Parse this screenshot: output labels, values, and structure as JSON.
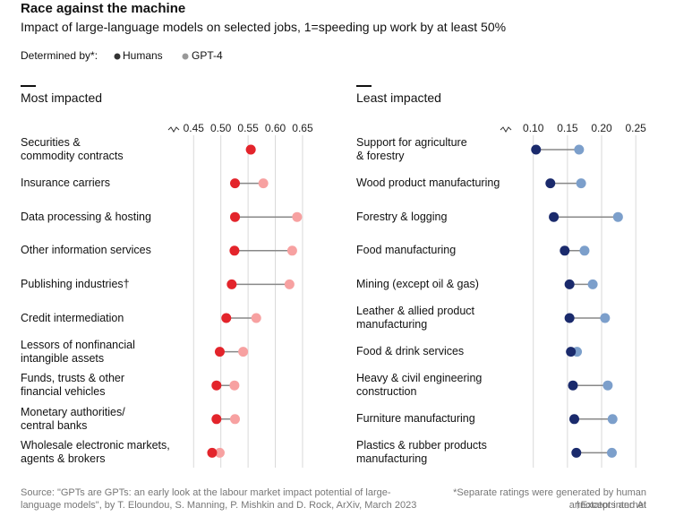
{
  "header": {
    "title": "Race against the machine",
    "subtitle": "Impact of large-language models on selected jobs, 1=speeding up work by at least 50%",
    "legend_label": "Determined by*:"
  },
  "chart_data": [
    {
      "type": "dot",
      "title": "Most impacted",
      "categories": [
        "Securities &\ncommodity contracts",
        "Insurance carriers",
        "Data processing & hosting",
        "Other information services",
        "Publishing industries†",
        "Credit intermediation",
        "Lessors of nonfinancial\nintangible assets",
        "Funds, trusts & other\nfinancial vehicles",
        "Monetary authorities/\ncentral banks",
        "Wholesale electronic markets,\nagents & brokers"
      ],
      "series": [
        {
          "name": "Humans",
          "color": "#e3242b",
          "values": [
            0.555,
            0.526,
            0.526,
            0.525,
            0.52,
            0.51,
            0.498,
            0.492,
            0.492,
            0.484
          ]
        },
        {
          "name": "GPT-4",
          "color": "#f7a1a1",
          "values": [
            0.555,
            0.578,
            0.64,
            0.631,
            0.626,
            0.565,
            0.541,
            0.525,
            0.526,
            0.498
          ]
        }
      ],
      "xlim": [
        0.42,
        0.655
      ],
      "xticks": [
        0.45,
        {
          "value": 0.5,
          "label": "0.50"
        },
        0.55,
        {
          "value": 0.6,
          "label": "0.60"
        },
        0.65
      ],
      "grid": true
    },
    {
      "type": "dot",
      "title": "Least impacted",
      "categories": [
        "Support for agriculture\n& forestry",
        "Wood product manufacturing",
        "Forestry & logging",
        "Food manufacturing",
        "Mining (except oil & gas)",
        "Leather & allied product\nmanufacturing",
        "Food & drink services",
        "Heavy & civil engineering\nconstruction",
        "Furniture manufacturing",
        "Plastics & rubber products\nmanufacturing"
      ],
      "series": [
        {
          "name": "Humans",
          "color": "#1a2a6c",
          "values": [
            0.104,
            0.125,
            0.13,
            0.146,
            0.153,
            0.153,
            0.155,
            0.158,
            0.16,
            0.163
          ]
        },
        {
          "name": "GPT-4",
          "color": "#7c9fcb",
          "values": [
            0.167,
            0.17,
            0.224,
            0.175,
            0.187,
            0.205,
            0.164,
            0.209,
            0.216,
            0.215
          ]
        }
      ],
      "xlim": [
        0.065,
        0.255
      ],
      "xticks": [
        {
          "value": 0.1,
          "label": "0.10"
        },
        0.15,
        {
          "value": 0.2,
          "label": "0.20"
        },
        0.25
      ],
      "grid": true
    }
  ],
  "footer": {
    "source": "Source: \"GPTs are GPTs: an early look at the labour market impact potential of large-\nlanguage models\", by T. Eloundou, S. Manning, P. Mishkin and D. Rock, ArXiv, March 2023",
    "note": "*Separate ratings were generated by human\nannotators and AI",
    "note2": "†Except internet"
  }
}
